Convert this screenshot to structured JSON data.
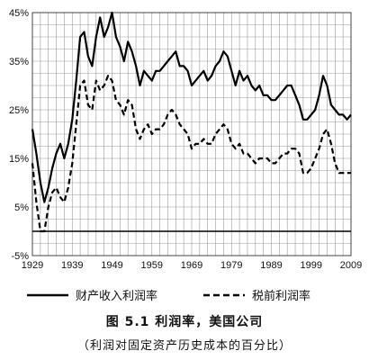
{
  "chart_data": {
    "type": "line",
    "title": "",
    "xlabel": "",
    "ylabel": "",
    "xlim": [
      1929,
      2009
    ],
    "ylim": [
      -5,
      45
    ],
    "y_ticks": [
      -5,
      5,
      15,
      25,
      35,
      45
    ],
    "y_tick_labels": [
      "-5%",
      "5%",
      "15%",
      "25%",
      "35%",
      "45%"
    ],
    "x_ticks": [
      1929,
      1939,
      1949,
      1959,
      1969,
      1979,
      1989,
      1999,
      2009
    ],
    "x_tick_labels": [
      "1929",
      "1939",
      "1949",
      "1959",
      "1969",
      "1979",
      "1989",
      "1999",
      "2009"
    ],
    "grid": true,
    "legend_position": "bottom",
    "x": [
      1929,
      1930,
      1931,
      1932,
      1933,
      1934,
      1935,
      1936,
      1937,
      1938,
      1939,
      1940,
      1941,
      1942,
      1943,
      1944,
      1945,
      1946,
      1947,
      1948,
      1949,
      1950,
      1951,
      1952,
      1953,
      1954,
      1955,
      1956,
      1957,
      1958,
      1959,
      1960,
      1961,
      1962,
      1963,
      1964,
      1965,
      1966,
      1967,
      1968,
      1969,
      1970,
      1971,
      1972,
      1973,
      1974,
      1975,
      1976,
      1977,
      1978,
      1979,
      1980,
      1981,
      1982,
      1983,
      1984,
      1985,
      1986,
      1987,
      1988,
      1989,
      1990,
      1991,
      1992,
      1993,
      1994,
      1995,
      1996,
      1997,
      1998,
      1999,
      2000,
      2001,
      2002,
      2003,
      2004,
      2005,
      2006,
      2007,
      2008,
      2009
    ],
    "series": [
      {
        "name": "财产收入利润率",
        "style": "solid",
        "values": [
          21,
          16,
          10,
          6,
          9,
          13,
          16,
          18,
          15,
          18,
          23,
          31,
          40,
          41,
          36,
          34,
          40,
          44,
          40,
          42,
          45,
          40,
          38,
          35,
          39,
          37,
          34,
          30,
          33,
          32,
          31,
          33,
          33,
          34,
          35,
          36,
          37,
          34,
          34,
          33,
          30,
          31,
          32,
          33,
          31,
          32,
          34,
          35,
          37,
          36,
          33,
          30,
          33,
          31,
          32,
          30,
          29,
          30,
          28,
          28,
          27,
          27,
          28,
          29,
          30,
          30,
          28,
          26,
          23,
          23,
          24,
          25,
          28,
          32,
          30,
          26,
          25,
          24,
          24,
          23,
          24
        ],
        "color": "#000000"
      },
      {
        "name": "税前利润率",
        "style": "dashed",
        "values": [
          14,
          6,
          0,
          0,
          5,
          8,
          9,
          7,
          6,
          9,
          14,
          22,
          30,
          31,
          26,
          25,
          31,
          29,
          30,
          32,
          31,
          27,
          26,
          24,
          27,
          26,
          21,
          19,
          21,
          22,
          20,
          21,
          21,
          22,
          24,
          25,
          24,
          22,
          21,
          20,
          17,
          18,
          18,
          19,
          18,
          18,
          20,
          21,
          22,
          21,
          18,
          17,
          18,
          16,
          16,
          15,
          14,
          15,
          15,
          15,
          14,
          14,
          15,
          16,
          16,
          17,
          17,
          16,
          12,
          12,
          13,
          15,
          17,
          20,
          21,
          18,
          14,
          12,
          12,
          12,
          12
        ],
        "color": "#000000"
      }
    ]
  },
  "caption": {
    "title": "图 5.1    利润率，美国公司",
    "subtitle": "（利润对固定资产历史成本的百分比）"
  }
}
